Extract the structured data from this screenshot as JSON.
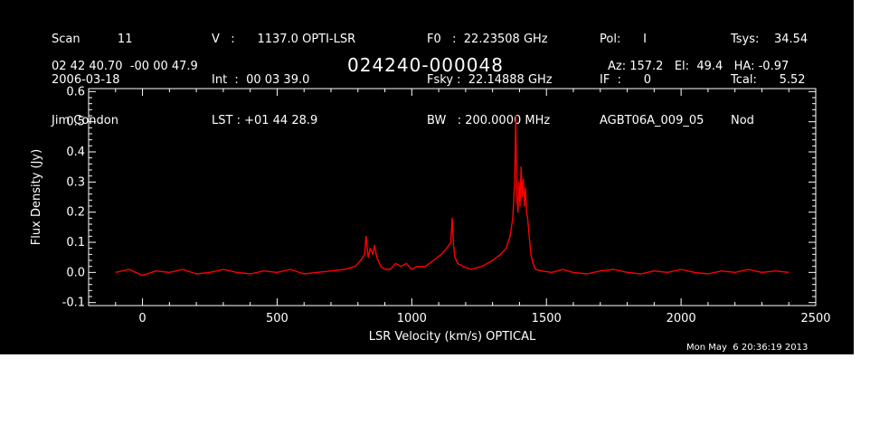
{
  "header": {
    "col1": [
      "Scan          11",
      "2006-03-18",
      "Jim Condon"
    ],
    "col2": [
      "V   :      1137.0 OPTI-LSR",
      "Int  :  00 03 39.0",
      "LST : +01 44 28.9"
    ],
    "col3": [
      "F0   :  22.23508 GHz",
      "Fsky :  22.14888 GHz",
      "BW   : 200.0000 MHz"
    ],
    "col4": [
      "Pol:      I",
      "IF  :      0",
      "AGBT06A_009_05"
    ],
    "col5": [
      "Tsys:    34.54",
      "Tcal:      5.52",
      "Nod"
    ],
    "coords": "02 42 40.70  -00 00 47.9",
    "source": "024240-000048",
    "azel": "Az: 157.2   El:  49.4   HA: -0.97",
    "timestamp": "Mon May  6 20:36:19 2013"
  },
  "colors": {
    "background": "#000000",
    "axes": "#ffffff",
    "trace": "#ff0000"
  },
  "chart_data": {
    "type": "line",
    "xlabel": "LSR Velocity (km/s) OPTICAL",
    "ylabel": "Flux Density (Jy)",
    "xlim": [
      -200,
      2500
    ],
    "ylim": [
      -0.11,
      0.61
    ],
    "xticks": [
      0,
      500,
      1000,
      1500,
      2000,
      2500
    ],
    "xtick_labels": [
      "0",
      "500",
      "1000",
      "1500",
      "2000",
      "2500"
    ],
    "yticks": [
      -0.1,
      0.0,
      0.1,
      0.2,
      0.3,
      0.4,
      0.5,
      0.6
    ],
    "ytick_labels": [
      "-0.1",
      "0.0",
      "0.1",
      "0.2",
      "0.3",
      "0.4",
      "0.5",
      "0.6"
    ],
    "grid": false,
    "series": [
      {
        "color": "#ff0000",
        "x": [
          -100,
          -50,
          0,
          50,
          100,
          150,
          200,
          250,
          300,
          350,
          400,
          450,
          500,
          550,
          600,
          650,
          700,
          750,
          790,
          810,
          825,
          830,
          838,
          845,
          855,
          862,
          870,
          885,
          900,
          920,
          940,
          960,
          980,
          1000,
          1020,
          1050,
          1080,
          1110,
          1130,
          1145,
          1150,
          1155,
          1160,
          1170,
          1190,
          1220,
          1260,
          1300,
          1330,
          1350,
          1365,
          1375,
          1382,
          1386,
          1390,
          1394,
          1398,
          1402,
          1406,
          1410,
          1414,
          1418,
          1422,
          1426,
          1430,
          1436,
          1442,
          1450,
          1460,
          1480,
          1520,
          1560,
          1600,
          1650,
          1700,
          1750,
          1800,
          1850,
          1900,
          1950,
          2000,
          2050,
          2100,
          2150,
          2200,
          2250,
          2300,
          2350,
          2400
        ],
        "y": [
          0.0,
          0.01,
          -0.01,
          0.005,
          0.0,
          0.01,
          -0.005,
          0.0,
          0.01,
          0.0,
          -0.005,
          0.005,
          0.0,
          0.01,
          -0.005,
          0.0,
          0.005,
          0.01,
          0.02,
          0.04,
          0.06,
          0.12,
          0.05,
          0.08,
          0.06,
          0.09,
          0.05,
          0.02,
          0.01,
          0.01,
          0.03,
          0.02,
          0.03,
          0.01,
          0.02,
          0.02,
          0.04,
          0.06,
          0.08,
          0.1,
          0.18,
          0.09,
          0.05,
          0.03,
          0.02,
          0.01,
          0.02,
          0.04,
          0.06,
          0.08,
          0.12,
          0.18,
          0.3,
          0.52,
          0.25,
          0.2,
          0.3,
          0.22,
          0.35,
          0.25,
          0.31,
          0.22,
          0.28,
          0.2,
          0.18,
          0.12,
          0.06,
          0.03,
          0.01,
          0.005,
          0.0,
          0.01,
          0.0,
          -0.005,
          0.005,
          0.01,
          0.0,
          -0.005,
          0.005,
          0.0,
          0.01,
          0.0,
          -0.005,
          0.005,
          0.0,
          0.01,
          0.0,
          0.005,
          0.0
        ]
      }
    ]
  }
}
